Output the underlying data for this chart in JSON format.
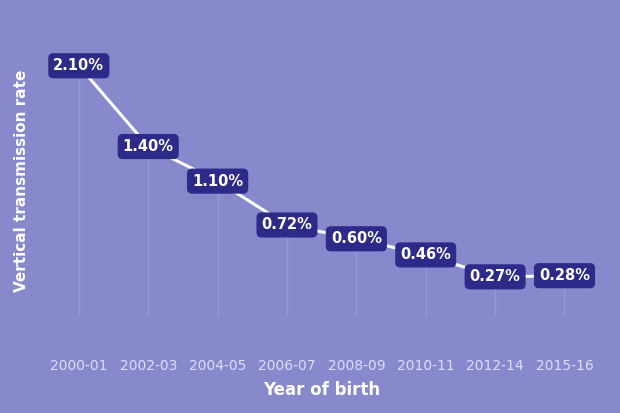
{
  "categories": [
    "2000-01",
    "2002-03",
    "2004-05",
    "2006-07",
    "2008-09",
    "2010-11",
    "2012-14",
    "2015-16"
  ],
  "values": [
    2.1,
    1.4,
    1.1,
    0.72,
    0.6,
    0.46,
    0.27,
    0.28
  ],
  "labels": [
    "2.10%",
    "1.40%",
    "1.10%",
    "0.72%",
    "0.60%",
    "0.46%",
    "0.27%",
    "0.28%"
  ],
  "background_color": "#8888cc",
  "line_color": "#ffffff",
  "box_color": "#2e2a8a",
  "text_color": "#ffffff",
  "xlabel": "Year of birth",
  "ylabel": "Vertical transmission rate",
  "xlabel_fontsize": 12,
  "ylabel_fontsize": 11,
  "label_fontsize": 10.5,
  "line_width": 2.2,
  "ylim_min": -0.35,
  "ylim_max": 2.55,
  "leader_line_color": "#9999cc",
  "tick_color": "#ddddff",
  "tick_fontsize": 10
}
